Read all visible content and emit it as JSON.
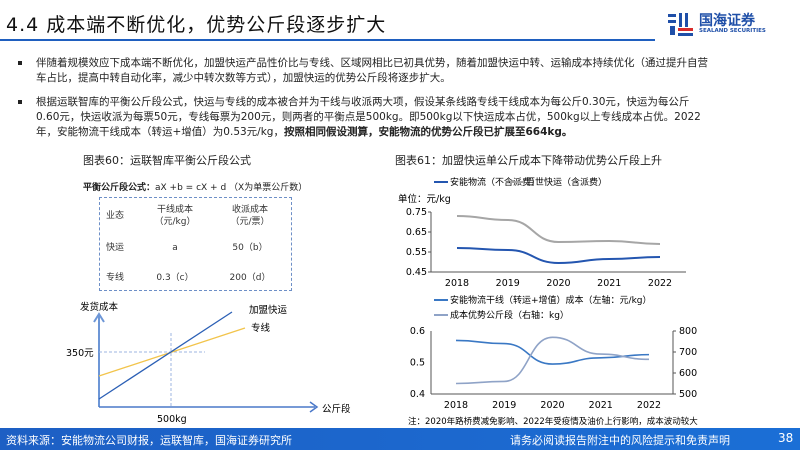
{
  "header": {
    "title": "4.4 成本端不断优化，优势公斤段逐步扩大",
    "logo_cn": "国海证券",
    "logo_en": "SEALAND SECURITIES"
  },
  "bullets": [
    {
      "text": "伴随着规模效应下成本端不断优化，加盟快运产品性价比与专线、区域网相比已初具优势，随着加盟快运中转、运输成本持续优化（通过提升自营车占比，提高中转自动化率，减少中转次数等方式），加盟快运的优势公斤段将逐步扩大。"
    },
    {
      "text": "根据运联智库的平衡公斤段公式，快运与专线的成本被合并为干线与收派两大项，假设某条线路专线干线成本为每公斤0.30元，快运为每公斤0.60元，快运收派为每票50元，专线每票为200元，则两者的平衡点是500kg。即500kg以下快运成本占优，500kg以上专线成本占优。2022年，安能物流干线成本（转运+增值）为0.53元/kg，",
      "bold": "按照相同假设测算，安能物流的优势公斤段已扩展至664kg。"
    }
  ],
  "fig60": {
    "caption": "图表60：运联智库平衡公斤段公式",
    "formula_label": "平衡公斤段公式：",
    "formula": "aX +b = cX + d （X为单票公斤数）",
    "table": {
      "headers": [
        "业态",
        "干线成本\n（元/kg）",
        "收派成本\n（元/票）"
      ],
      "rows": [
        [
          "快运",
          "a",
          "50（b）"
        ],
        [
          "专线",
          "0.3（c）",
          "200（d）"
        ]
      ]
    },
    "diagram": {
      "ylabel": "发货成本",
      "xlabel": "公斤段",
      "y_mark": "350元",
      "x_mark": "500kg",
      "line1": "加盟快运",
      "line2": "专线"
    },
    "colors": {
      "line1": "#2b5fb5",
      "line2": "#f2c44b"
    }
  },
  "fig61": {
    "caption": "图表61：加盟快运单公斤成本下降带动优势公斤段上升"
  },
  "chart_data": [
    {
      "type": "line",
      "unit": "单位：元/kg",
      "categories": [
        "2018",
        "2019",
        "2020",
        "2021",
        "2022"
      ],
      "ylim": [
        0.45,
        0.75
      ],
      "yticks": [
        "0.75",
        "0.65",
        "0.55",
        "0.45"
      ],
      "series": [
        {
          "name": "安能物流（不含派费）",
          "values": [
            0.57,
            0.56,
            0.495,
            0.515,
            0.525
          ],
          "color": "#2456b0"
        },
        {
          "name": "百世快运（含派费）",
          "values": [
            0.73,
            0.71,
            0.6,
            0.605,
            0.59
          ],
          "color": "#a6a6a6"
        }
      ]
    },
    {
      "type": "line",
      "categories": [
        "2018",
        "2019",
        "2020",
        "2021",
        "2022"
      ],
      "ylim": [
        0.4,
        0.6
      ],
      "y2lim": [
        500,
        800
      ],
      "yticks": [
        "0.6",
        "0.5",
        "0.4"
      ],
      "y2ticks": [
        "800",
        "700",
        "600",
        "500"
      ],
      "series": [
        {
          "name": "安能物流干线（转运+增值）成本（左轴：元/kg）",
          "axis": "left",
          "values": [
            0.57,
            0.56,
            0.495,
            0.515,
            0.525
          ],
          "color": "#3a78c4"
        },
        {
          "name": "成本优势公斤段（右轴：kg）",
          "axis": "right",
          "values": [
            550,
            560,
            770,
            690,
            665
          ],
          "color": "#8fa3c7"
        }
      ],
      "note": "注：2020年路桥费减免影响、2022年受疫情及油价上行影响，成本波动较大"
    }
  ],
  "footer": {
    "source": "资料来源：安能物流公司财报，运联智库，国海证券研究所",
    "disclaimer": "请务必阅读报告附注中的风险提示和免责声明",
    "page": "38"
  }
}
